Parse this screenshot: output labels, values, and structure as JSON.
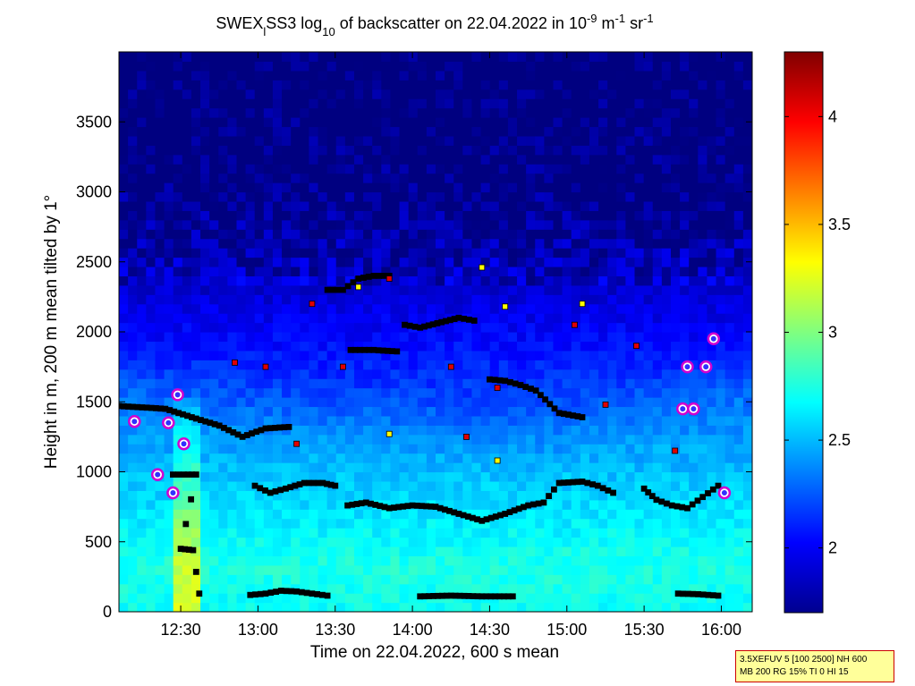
{
  "chart_data": {
    "type": "heatmap",
    "title": {
      "parts": [
        {
          "text": "SWEX",
          "style": "normal"
        },
        {
          "text": "l",
          "style": "sub"
        },
        {
          "text": "SS3 log",
          "style": "normal"
        },
        {
          "text": "10",
          "style": "sub"
        },
        {
          "text": " of backscatter on 22.04.2022 in 10",
          "style": "normal"
        },
        {
          "text": "-9",
          "style": "sup"
        },
        {
          "text": " m",
          "style": "normal"
        },
        {
          "text": "-1",
          "style": "sup"
        },
        {
          "text": " sr",
          "style": "normal"
        },
        {
          "text": "-1",
          "style": "sup"
        }
      ]
    },
    "xlabel": "Time on 22.04.2022, 600 s mean",
    "ylabel": "Height in m, 200 m mean tilted by 1°",
    "xlim_hours": [
      12.1,
      16.2
    ],
    "ylim": [
      0,
      4000
    ],
    "x_ticks": [
      {
        "value": 12.5,
        "label": "12:30"
      },
      {
        "value": 13.0,
        "label": "13:00"
      },
      {
        "value": 13.5,
        "label": "13:30"
      },
      {
        "value": 14.0,
        "label": "14:00"
      },
      {
        "value": 14.5,
        "label": "14:30"
      },
      {
        "value": 15.0,
        "label": "15:00"
      },
      {
        "value": 15.5,
        "label": "15:30"
      },
      {
        "value": 16.0,
        "label": "16:00"
      }
    ],
    "y_ticks": [
      0,
      500,
      1000,
      1500,
      2000,
      2500,
      3000,
      3500
    ],
    "colorbar": {
      "range": [
        1.7,
        4.3
      ],
      "ticks": [
        {
          "value": 2,
          "label": "2"
        },
        {
          "value": 2.5,
          "label": "2.5"
        },
        {
          "value": 3,
          "label": "3"
        },
        {
          "value": 3.5,
          "label": "3.5"
        },
        {
          "value": 4,
          "label": "4"
        }
      ],
      "colormap": "jet"
    },
    "profile": [
      {
        "h": 0,
        "v": 2.7
      },
      {
        "h": 300,
        "v": 2.75
      },
      {
        "h": 700,
        "v": 2.6
      },
      {
        "h": 1000,
        "v": 2.5
      },
      {
        "h": 1400,
        "v": 2.35
      },
      {
        "h": 1800,
        "v": 2.2
      },
      {
        "h": 2200,
        "v": 2.05
      },
      {
        "h": 2600,
        "v": 1.9
      },
      {
        "h": 3000,
        "v": 1.8
      },
      {
        "h": 4000,
        "v": 1.75
      }
    ],
    "aerosol_layer_top": [
      {
        "t": 12.1,
        "h": 1420
      },
      {
        "t": 12.3,
        "h": 1400
      },
      {
        "t": 12.5,
        "h": 1350
      },
      {
        "t": 12.8,
        "h": 1250
      },
      {
        "t": 13.2,
        "h": 1150
      },
      {
        "t": 13.6,
        "h": 1100
      },
      {
        "t": 14.0,
        "h": 1050
      },
      {
        "t": 14.5,
        "h": 950
      },
      {
        "t": 15.0,
        "h": 1050
      },
      {
        "t": 15.5,
        "h": 1250
      },
      {
        "t": 15.8,
        "h": 1400
      },
      {
        "t": 16.2,
        "h": 1500
      }
    ],
    "detection_layers": [
      {
        "name": "ground-layer-1",
        "color": "black",
        "points": [
          {
            "t": 12.95,
            "h": 120
          },
          {
            "t": 13.05,
            "h": 130
          },
          {
            "t": 13.15,
            "h": 150
          },
          {
            "t": 13.25,
            "h": 145
          },
          {
            "t": 13.35,
            "h": 130
          },
          {
            "t": 13.45,
            "h": 115
          }
        ]
      },
      {
        "name": "ground-layer-2",
        "color": "black",
        "points": [
          {
            "t": 14.05,
            "h": 110
          },
          {
            "t": 14.25,
            "h": 115
          },
          {
            "t": 14.45,
            "h": 110
          },
          {
            "t": 14.65,
            "h": 110
          }
        ]
      },
      {
        "name": "ground-layer-3",
        "color": "black",
        "points": [
          {
            "t": 15.72,
            "h": 130
          },
          {
            "t": 15.85,
            "h": 125
          },
          {
            "t": 15.98,
            "h": 115
          }
        ]
      },
      {
        "name": "mixed-layer-west",
        "color": "black",
        "points": [
          {
            "t": 12.98,
            "h": 900
          },
          {
            "t": 13.08,
            "h": 850
          },
          {
            "t": 13.18,
            "h": 880
          },
          {
            "t": 13.3,
            "h": 920
          },
          {
            "t": 13.42,
            "h": 920
          },
          {
            "t": 13.5,
            "h": 900
          }
        ]
      },
      {
        "name": "mixed-layer-center",
        "color": "black",
        "points": [
          {
            "t": 13.58,
            "h": 760
          },
          {
            "t": 13.7,
            "h": 780
          },
          {
            "t": 13.85,
            "h": 740
          },
          {
            "t": 14.0,
            "h": 760
          },
          {
            "t": 14.15,
            "h": 750
          },
          {
            "t": 14.3,
            "h": 700
          },
          {
            "t": 14.45,
            "h": 650
          },
          {
            "t": 14.6,
            "h": 700
          },
          {
            "t": 14.75,
            "h": 760
          },
          {
            "t": 14.85,
            "h": 780
          },
          {
            "t": 14.95,
            "h": 920
          },
          {
            "t": 15.1,
            "h": 930
          },
          {
            "t": 15.2,
            "h": 900
          },
          {
            "t": 15.3,
            "h": 850
          }
        ]
      },
      {
        "name": "mixed-layer-east",
        "color": "black",
        "points": [
          {
            "t": 15.5,
            "h": 880
          },
          {
            "t": 15.58,
            "h": 800
          },
          {
            "t": 15.68,
            "h": 760
          },
          {
            "t": 15.78,
            "h": 740
          },
          {
            "t": 15.88,
            "h": 820
          },
          {
            "t": 15.98,
            "h": 900
          }
        ]
      },
      {
        "name": "upper-layer-1500",
        "color": "black",
        "points": [
          {
            "t": 12.1,
            "h": 1470
          },
          {
            "t": 12.25,
            "h": 1460
          },
          {
            "t": 12.4,
            "h": 1450
          },
          {
            "t": 12.6,
            "h": 1380
          },
          {
            "t": 12.75,
            "h": 1330
          },
          {
            "t": 12.9,
            "h": 1250
          },
          {
            "t": 13.05,
            "h": 1310
          },
          {
            "t": 13.2,
            "h": 1320
          }
        ]
      },
      {
        "name": "upper-layer-1800",
        "color": "black",
        "points": [
          {
            "t": 13.6,
            "h": 1870
          },
          {
            "t": 13.75,
            "h": 1870
          },
          {
            "t": 13.9,
            "h": 1860
          }
        ]
      },
      {
        "name": "upper-layer-1650",
        "color": "black",
        "points": [
          {
            "t": 14.5,
            "h": 1660
          },
          {
            "t": 14.6,
            "h": 1650
          },
          {
            "t": 14.7,
            "h": 1620
          },
          {
            "t": 14.8,
            "h": 1580
          },
          {
            "t": 14.95,
            "h": 1420
          },
          {
            "t": 15.1,
            "h": 1390
          }
        ]
      },
      {
        "name": "upper-layer-2300",
        "color": "black",
        "points": [
          {
            "t": 13.45,
            "h": 2300
          },
          {
            "t": 13.55,
            "h": 2300
          },
          {
            "t": 13.65,
            "h": 2380
          },
          {
            "t": 13.75,
            "h": 2400
          },
          {
            "t": 13.85,
            "h": 2400
          }
        ]
      },
      {
        "name": "upper-layer-2050",
        "color": "black",
        "points": [
          {
            "t": 13.95,
            "h": 2050
          },
          {
            "t": 14.05,
            "h": 2030
          },
          {
            "t": 14.3,
            "h": 2100
          },
          {
            "t": 14.4,
            "h": 2080
          }
        ]
      },
      {
        "name": "collapse-column",
        "color": "black",
        "points": [
          {
            "t": 12.45,
            "h": 980
          },
          {
            "t": 12.52,
            "h": 980
          },
          {
            "t": 12.6,
            "h": 980
          },
          {
            "t": 12.5,
            "h": 450
          },
          {
            "t": 12.58,
            "h": 440
          },
          {
            "t": 12.62,
            "h": 130
          }
        ]
      },
      {
        "name": "red-markers",
        "color": "red",
        "points": [
          {
            "t": 13.05,
            "h": 1750
          },
          {
            "t": 13.35,
            "h": 2200
          },
          {
            "t": 13.55,
            "h": 1750
          },
          {
            "t": 13.85,
            "h": 2380
          },
          {
            "t": 14.25,
            "h": 1750
          },
          {
            "t": 14.35,
            "h": 1250
          },
          {
            "t": 14.55,
            "h": 1600
          },
          {
            "t": 15.05,
            "h": 2050
          },
          {
            "t": 15.45,
            "h": 1900
          },
          {
            "t": 15.7,
            "h": 1150
          },
          {
            "t": 13.25,
            "h": 1200
          },
          {
            "t": 12.85,
            "h": 1780
          },
          {
            "t": 15.25,
            "h": 1480
          }
        ]
      },
      {
        "name": "yellow-markers",
        "color": "yellow",
        "points": [
          {
            "t": 13.65,
            "h": 2320
          },
          {
            "t": 14.45,
            "h": 2460
          },
          {
            "t": 14.6,
            "h": 2180
          },
          {
            "t": 15.1,
            "h": 2200
          },
          {
            "t": 14.55,
            "h": 1080
          },
          {
            "t": 13.85,
            "h": 1270
          }
        ]
      },
      {
        "name": "cloud-base-markers",
        "color": "magenta",
        "points": [
          {
            "t": 12.2,
            "h": 1360
          },
          {
            "t": 12.35,
            "h": 980
          },
          {
            "t": 12.42,
            "h": 1350
          },
          {
            "t": 12.48,
            "h": 1550
          },
          {
            "t": 12.52,
            "h": 1200
          },
          {
            "t": 12.45,
            "h": 850
          },
          {
            "t": 15.75,
            "h": 1450
          },
          {
            "t": 15.78,
            "h": 1750
          },
          {
            "t": 15.9,
            "h": 1750
          },
          {
            "t": 15.95,
            "h": 1950
          },
          {
            "t": 16.02,
            "h": 850
          },
          {
            "t": 15.82,
            "h": 1450
          }
        ]
      }
    ]
  },
  "info_box": {
    "line1": "3.5XEFUV 5 [100 2500] NH 600",
    "line2": "MB 200 RG 15% TI 0 HI 15"
  }
}
